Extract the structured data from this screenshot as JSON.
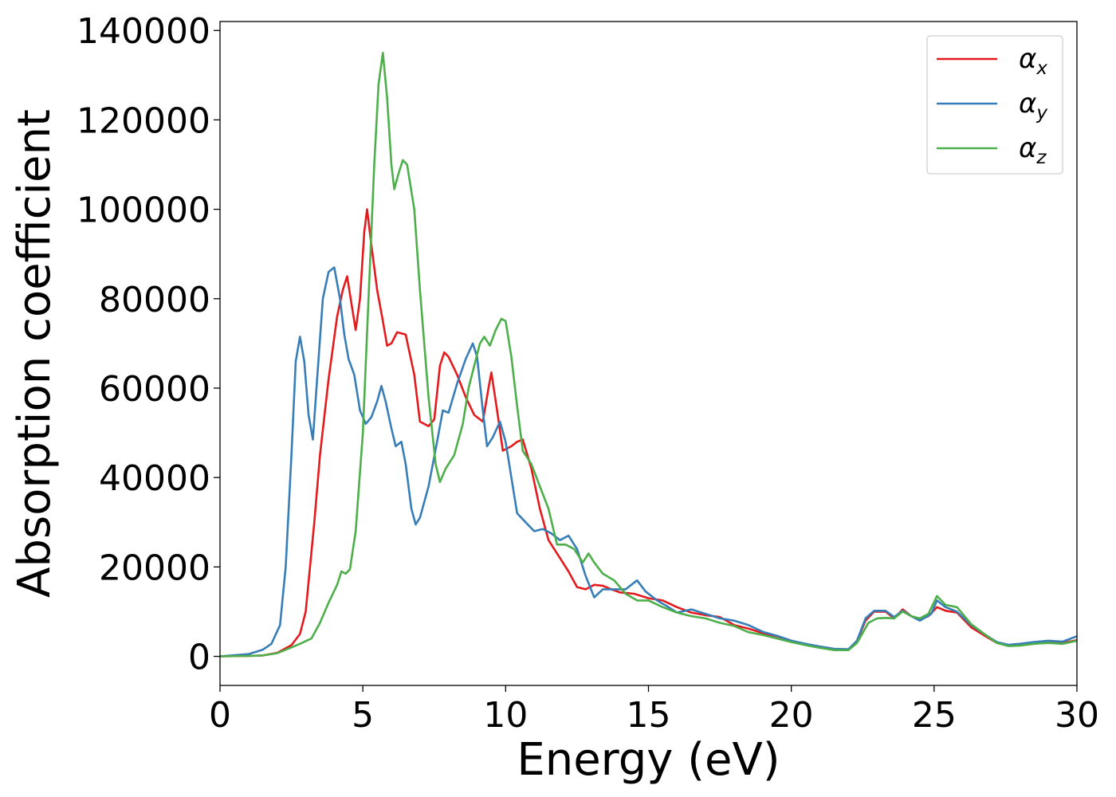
{
  "chart_data": {
    "type": "line",
    "xlabel": "Energy (eV)",
    "ylabel": "Absorption coefficient",
    "xlim": [
      0,
      30
    ],
    "ylim": [
      -6500,
      142000
    ],
    "x_ticks": [
      0,
      5,
      10,
      15,
      20,
      25,
      30
    ],
    "y_ticks": [
      0,
      20000,
      40000,
      60000,
      80000,
      100000,
      120000,
      140000
    ],
    "x_tick_labels": [
      "0",
      "5",
      "10",
      "15",
      "20",
      "25",
      "30"
    ],
    "y_tick_labels": [
      "0",
      "20000",
      "40000",
      "60000",
      "80000",
      "100000",
      "120000",
      "140000"
    ],
    "grid": false,
    "legend_position": "top-right",
    "series": [
      {
        "name": "α_x",
        "legend_base": "α",
        "legend_sub": "x",
        "color": "#e41a1c",
        "points": [
          [
            0,
            0
          ],
          [
            1,
            100
          ],
          [
            1.5,
            200
          ],
          [
            2,
            800
          ],
          [
            2.5,
            2500
          ],
          [
            2.8,
            5000
          ],
          [
            3.0,
            10000
          ],
          [
            3.3,
            30000
          ],
          [
            3.5,
            45000
          ],
          [
            3.8,
            62000
          ],
          [
            4.1,
            76000
          ],
          [
            4.3,
            82000
          ],
          [
            4.45,
            85000
          ],
          [
            4.6,
            79000
          ],
          [
            4.75,
            73000
          ],
          [
            4.9,
            80000
          ],
          [
            5.05,
            95000
          ],
          [
            5.15,
            100000
          ],
          [
            5.3,
            92000
          ],
          [
            5.5,
            82000
          ],
          [
            5.7,
            75000
          ],
          [
            5.85,
            69500
          ],
          [
            6.0,
            70000
          ],
          [
            6.2,
            72500
          ],
          [
            6.5,
            72000
          ],
          [
            6.8,
            63000
          ],
          [
            7.0,
            52500
          ],
          [
            7.3,
            51500
          ],
          [
            7.5,
            53000
          ],
          [
            7.7,
            65000
          ],
          [
            7.85,
            68000
          ],
          [
            8.0,
            67000
          ],
          [
            8.3,
            63000
          ],
          [
            8.6,
            58000
          ],
          [
            8.9,
            54000
          ],
          [
            9.2,
            52500
          ],
          [
            9.4,
            60000
          ],
          [
            9.5,
            63500
          ],
          [
            9.7,
            55000
          ],
          [
            9.9,
            46000
          ],
          [
            10.2,
            47000
          ],
          [
            10.4,
            48000
          ],
          [
            10.6,
            48500
          ],
          [
            10.9,
            42000
          ],
          [
            11.2,
            33000
          ],
          [
            11.5,
            26000
          ],
          [
            11.9,
            22000
          ],
          [
            12.2,
            19000
          ],
          [
            12.5,
            15500
          ],
          [
            12.8,
            15000
          ],
          [
            13.1,
            16000
          ],
          [
            13.4,
            15800
          ],
          [
            13.7,
            15000
          ],
          [
            14.0,
            14300
          ],
          [
            14.5,
            14000
          ],
          [
            15.0,
            13000
          ],
          [
            15.5,
            12500
          ],
          [
            16.0,
            11000
          ],
          [
            16.5,
            9800
          ],
          [
            17.0,
            9200
          ],
          [
            17.5,
            8800
          ],
          [
            18.0,
            7000
          ],
          [
            18.5,
            6200
          ],
          [
            19.0,
            5200
          ],
          [
            19.5,
            4500
          ],
          [
            20.0,
            3500
          ],
          [
            20.5,
            2700
          ],
          [
            21.0,
            2100
          ],
          [
            21.5,
            1500
          ],
          [
            22.0,
            1500
          ],
          [
            22.3,
            3500
          ],
          [
            22.6,
            8000
          ],
          [
            22.9,
            10000
          ],
          [
            23.3,
            10000
          ],
          [
            23.6,
            8500
          ],
          [
            23.9,
            10500
          ],
          [
            24.2,
            9000
          ],
          [
            24.5,
            8200
          ],
          [
            24.8,
            9000
          ],
          [
            25.1,
            11000
          ],
          [
            25.4,
            10200
          ],
          [
            25.8,
            9800
          ],
          [
            26.3,
            6500
          ],
          [
            26.8,
            4500
          ],
          [
            27.2,
            3000
          ],
          [
            27.6,
            2500
          ],
          [
            28.0,
            2700
          ],
          [
            28.5,
            3000
          ],
          [
            29.0,
            3300
          ],
          [
            29.5,
            3000
          ],
          [
            30.0,
            3600
          ]
        ]
      },
      {
        "name": "α_y",
        "legend_base": "α",
        "legend_sub": "y",
        "color": "#377eb8",
        "points": [
          [
            0,
            0
          ],
          [
            1,
            500
          ],
          [
            1.5,
            1500
          ],
          [
            1.8,
            2800
          ],
          [
            2.1,
            7000
          ],
          [
            2.3,
            20000
          ],
          [
            2.5,
            45000
          ],
          [
            2.65,
            66000
          ],
          [
            2.8,
            71500
          ],
          [
            2.95,
            66000
          ],
          [
            3.1,
            54000
          ],
          [
            3.25,
            48500
          ],
          [
            3.4,
            62000
          ],
          [
            3.6,
            80000
          ],
          [
            3.8,
            86000
          ],
          [
            4.0,
            87000
          ],
          [
            4.2,
            80000
          ],
          [
            4.35,
            72000
          ],
          [
            4.5,
            66500
          ],
          [
            4.7,
            63000
          ],
          [
            4.9,
            55000
          ],
          [
            5.1,
            52000
          ],
          [
            5.3,
            53500
          ],
          [
            5.5,
            57000
          ],
          [
            5.65,
            60500
          ],
          [
            5.8,
            57000
          ],
          [
            6.0,
            51000
          ],
          [
            6.15,
            47000
          ],
          [
            6.35,
            48000
          ],
          [
            6.5,
            43000
          ],
          [
            6.7,
            33000
          ],
          [
            6.85,
            29500
          ],
          [
            7.0,
            31000
          ],
          [
            7.3,
            38000
          ],
          [
            7.6,
            48000
          ],
          [
            7.8,
            55000
          ],
          [
            8.0,
            54500
          ],
          [
            8.3,
            61000
          ],
          [
            8.6,
            66500
          ],
          [
            8.85,
            70000
          ],
          [
            9.0,
            67000
          ],
          [
            9.2,
            55000
          ],
          [
            9.35,
            47000
          ],
          [
            9.55,
            49000
          ],
          [
            9.8,
            52500
          ],
          [
            10.0,
            48000
          ],
          [
            10.2,
            40000
          ],
          [
            10.4,
            32000
          ],
          [
            10.7,
            30000
          ],
          [
            11.0,
            28000
          ],
          [
            11.3,
            28500
          ],
          [
            11.6,
            27500
          ],
          [
            11.9,
            26000
          ],
          [
            12.2,
            27000
          ],
          [
            12.5,
            24000
          ],
          [
            12.8,
            18000
          ],
          [
            13.1,
            13200
          ],
          [
            13.4,
            15000
          ],
          [
            13.8,
            15000
          ],
          [
            14.2,
            15000
          ],
          [
            14.6,
            17000
          ],
          [
            14.9,
            14500
          ],
          [
            15.3,
            12500
          ],
          [
            15.7,
            11000
          ],
          [
            16.0,
            9800
          ],
          [
            16.5,
            10500
          ],
          [
            17.0,
            9500
          ],
          [
            17.5,
            8500
          ],
          [
            18.0,
            8000
          ],
          [
            18.5,
            7000
          ],
          [
            19.0,
            5500
          ],
          [
            19.5,
            4600
          ],
          [
            20.0,
            3500
          ],
          [
            20.5,
            2800
          ],
          [
            21.0,
            2200
          ],
          [
            21.5,
            1700
          ],
          [
            22.0,
            1600
          ],
          [
            22.3,
            3500
          ],
          [
            22.6,
            8500
          ],
          [
            22.9,
            10200
          ],
          [
            23.3,
            10200
          ],
          [
            23.6,
            8800
          ],
          [
            23.9,
            10200
          ],
          [
            24.2,
            9000
          ],
          [
            24.5,
            8000
          ],
          [
            24.9,
            9500
          ],
          [
            25.1,
            12500
          ],
          [
            25.4,
            11000
          ],
          [
            25.8,
            10000
          ],
          [
            26.3,
            7000
          ],
          [
            26.8,
            4800
          ],
          [
            27.2,
            3200
          ],
          [
            27.6,
            2600
          ],
          [
            28.0,
            2800
          ],
          [
            28.5,
            3200
          ],
          [
            29.0,
            3500
          ],
          [
            29.5,
            3300
          ],
          [
            30.0,
            4500
          ]
        ]
      },
      {
        "name": "α_z",
        "legend_base": "α",
        "legend_sub": "z",
        "color": "#4daf4a",
        "points": [
          [
            0,
            0
          ],
          [
            1,
            100
          ],
          [
            1.5,
            200
          ],
          [
            2,
            700
          ],
          [
            2.5,
            2000
          ],
          [
            2.8,
            2800
          ],
          [
            3.2,
            4000
          ],
          [
            3.5,
            7500
          ],
          [
            3.8,
            12000
          ],
          [
            4.1,
            16000
          ],
          [
            4.25,
            19000
          ],
          [
            4.4,
            18500
          ],
          [
            4.55,
            19500
          ],
          [
            4.75,
            28000
          ],
          [
            5.0,
            50000
          ],
          [
            5.2,
            80000
          ],
          [
            5.4,
            110000
          ],
          [
            5.55,
            128000
          ],
          [
            5.7,
            135000
          ],
          [
            5.85,
            125000
          ],
          [
            6.0,
            110000
          ],
          [
            6.1,
            104500
          ],
          [
            6.25,
            108000
          ],
          [
            6.4,
            111000
          ],
          [
            6.55,
            110000
          ],
          [
            6.8,
            100000
          ],
          [
            7.0,
            82000
          ],
          [
            7.3,
            58000
          ],
          [
            7.55,
            43000
          ],
          [
            7.7,
            39000
          ],
          [
            7.9,
            42000
          ],
          [
            8.2,
            45000
          ],
          [
            8.5,
            52000
          ],
          [
            8.7,
            60000
          ],
          [
            8.9,
            65000
          ],
          [
            9.1,
            70000
          ],
          [
            9.25,
            71500
          ],
          [
            9.45,
            69500
          ],
          [
            9.65,
            73000
          ],
          [
            9.85,
            75500
          ],
          [
            10.0,
            75000
          ],
          [
            10.2,
            67000
          ],
          [
            10.4,
            56000
          ],
          [
            10.6,
            46000
          ],
          [
            10.9,
            43000
          ],
          [
            11.2,
            38000
          ],
          [
            11.5,
            33000
          ],
          [
            11.8,
            25000
          ],
          [
            12.1,
            25000
          ],
          [
            12.4,
            24000
          ],
          [
            12.7,
            21000
          ],
          [
            12.9,
            23000
          ],
          [
            13.1,
            21000
          ],
          [
            13.4,
            18500
          ],
          [
            13.8,
            17000
          ],
          [
            14.2,
            14000
          ],
          [
            14.6,
            12500
          ],
          [
            15.0,
            12500
          ],
          [
            15.5,
            11000
          ],
          [
            16.0,
            9800
          ],
          [
            16.5,
            9000
          ],
          [
            17.0,
            8500
          ],
          [
            17.5,
            7500
          ],
          [
            18.0,
            6800
          ],
          [
            18.5,
            5400
          ],
          [
            19.0,
            4800
          ],
          [
            19.5,
            4000
          ],
          [
            20.0,
            3200
          ],
          [
            20.5,
            2500
          ],
          [
            21.0,
            1900
          ],
          [
            21.5,
            1400
          ],
          [
            22.0,
            1400
          ],
          [
            22.3,
            3000
          ],
          [
            22.7,
            7500
          ],
          [
            23.0,
            8500
          ],
          [
            23.3,
            8600
          ],
          [
            23.6,
            8500
          ],
          [
            23.9,
            10000
          ],
          [
            24.2,
            9000
          ],
          [
            24.5,
            8500
          ],
          [
            24.8,
            9500
          ],
          [
            25.1,
            13500
          ],
          [
            25.4,
            11500
          ],
          [
            25.8,
            11000
          ],
          [
            26.3,
            7200
          ],
          [
            26.8,
            4800
          ],
          [
            27.2,
            3000
          ],
          [
            27.6,
            2300
          ],
          [
            28.0,
            2400
          ],
          [
            28.5,
            2800
          ],
          [
            29.0,
            3000
          ],
          [
            29.5,
            2800
          ],
          [
            30.0,
            3500
          ]
        ]
      }
    ]
  }
}
